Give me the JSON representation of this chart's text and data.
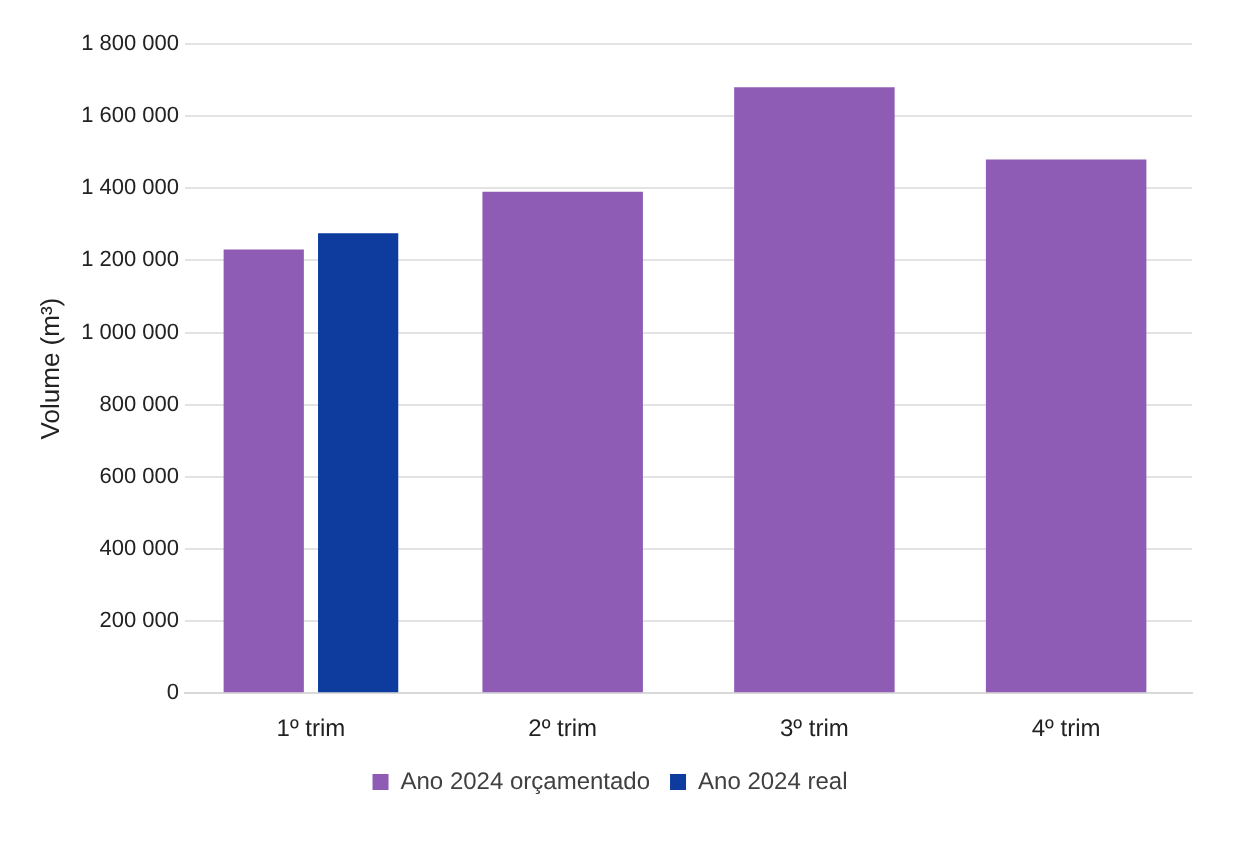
{
  "chart_data": {
    "type": "bar",
    "ylabel": "Volume (m³)",
    "categories": [
      "1º trim",
      "2º trim",
      "3º trim",
      "4º trim"
    ],
    "series": [
      {
        "name": "Ano 2024 orçamentado",
        "color": "#8e5bb5",
        "values": [
          1230000,
          1390000,
          1680000,
          1480000
        ]
      },
      {
        "name": "Ano 2024 real",
        "color": "#0d3b9e",
        "values": [
          1275000,
          null,
          null,
          null
        ]
      }
    ],
    "ylim": [
      0,
      1800000
    ],
    "yticks": [
      0,
      {
        "value": 200000,
        "label": "200 000"
      },
      {
        "value": 400000,
        "label": "400 000"
      },
      {
        "value": 600000,
        "label": "600 000"
      },
      {
        "value": 800000,
        "label": "800 000"
      },
      {
        "value": 1000000,
        "label": "1 000 000"
      },
      {
        "value": 1200000,
        "label": "1 200 000"
      },
      {
        "value": 1400000,
        "label": "1 400 000"
      },
      {
        "value": 1600000,
        "label": "1 600 000"
      },
      {
        "value": 1800000,
        "label": "1 800 000"
      }
    ],
    "grid": "y",
    "legend": "bottom"
  }
}
